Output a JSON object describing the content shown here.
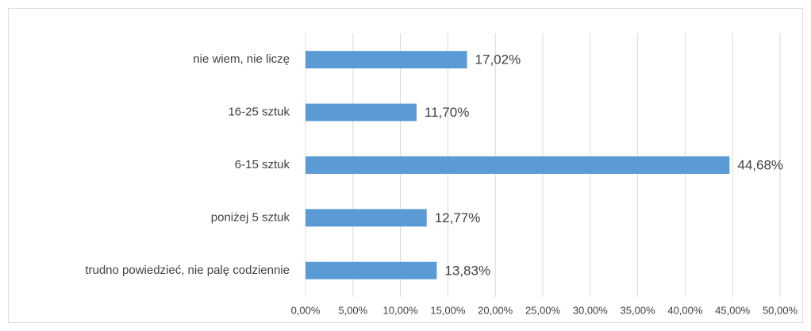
{
  "chart_data": {
    "type": "hbar",
    "categories": [
      "nie wiem, nie liczę",
      "16-25 sztuk",
      "6-15 sztuk",
      "poniżej 5 sztuk",
      "trudno powiedzieć, nie palę codziennie"
    ],
    "values": [
      17.02,
      11.7,
      44.68,
      12.77,
      13.83
    ],
    "value_labels": [
      "17,02%",
      "11,70%",
      "44,68%",
      "12,77%",
      "13,83%"
    ],
    "color": "#5b9bd5",
    "xlim": [
      0,
      50
    ],
    "xticks": [
      {
        "value": 0,
        "label": "0,00%"
      },
      {
        "value": 5,
        "label": "5,00%"
      },
      {
        "value": 10,
        "label": "10,00%"
      },
      {
        "value": 15,
        "label": "15,00%"
      },
      {
        "value": 20,
        "label": "20,00%"
      },
      {
        "value": 25,
        "label": "25,00%"
      },
      {
        "value": 30,
        "label": "30,00%"
      },
      {
        "value": 35,
        "label": "35,00%"
      },
      {
        "value": 40,
        "label": "40,00%"
      },
      {
        "value": 45,
        "label": "45,00%"
      },
      {
        "value": 50,
        "label": "50,00%"
      }
    ],
    "grid": true
  }
}
